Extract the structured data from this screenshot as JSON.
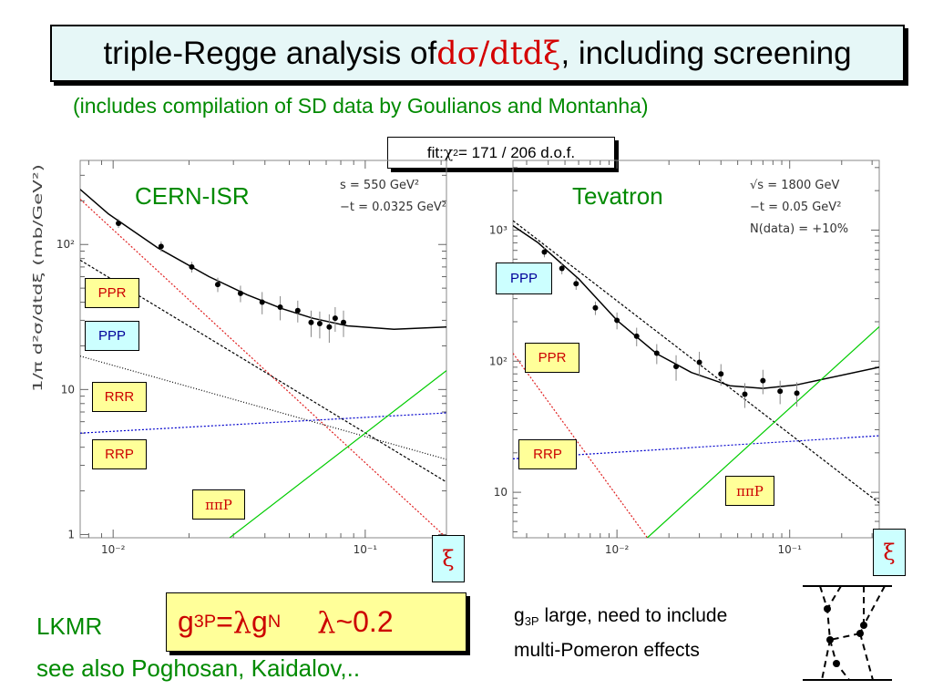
{
  "title": {
    "pre": "triple-Regge analysis of ",
    "red": "dσ/dtdξ",
    "post": ", including screening"
  },
  "subtitle": "(includes compilation of SD data by Goulianos and Montanha)",
  "fit": {
    "pre": "fit: ",
    "chi": "χ",
    "sup": "2",
    "post": " = 171 / 206 d.o.f."
  },
  "ylabel": "1/π  d²σ/dtdξ  (mb/GeV²)",
  "xi_label": "ξ",
  "colors": {
    "ppr": "#e02020",
    "ppp": "#000000",
    "rrr": "#000000",
    "rrp": "#0000cc",
    "pipip": "#00cc00",
    "total": "#000000",
    "label_text_red": "#cc0000",
    "label_text_blue": "#000099",
    "green_text": "#008a00"
  },
  "panels": {
    "isr": {
      "name": "CERN-ISR",
      "params": [
        "s = 550 GeV²",
        "−t = 0.0325 GeV²"
      ],
      "labels": [
        "PPR",
        "PPP",
        "RRR",
        "RRP",
        "ππP"
      ],
      "yticks": [
        "10²",
        "10",
        "1"
      ],
      "xticks": [
        "10⁻²",
        "10⁻¹"
      ]
    },
    "tev": {
      "name": "Tevatron",
      "params": [
        "√s = 1800 GeV",
        "−t = 0.05 GeV²",
        "N(data) = +10%"
      ],
      "labels": [
        "PPP",
        "PPR",
        "RRP",
        "ππP"
      ],
      "yticks": [
        "10³",
        "10²",
        "10"
      ],
      "xticks": [
        "10⁻²",
        "10⁻¹"
      ]
    }
  },
  "chart_data": [
    {
      "type": "line",
      "title": "CERN-ISR",
      "xlabel": "ξ",
      "ylabel": "1/π  d²σ/dtdξ  (mb/GeV²)",
      "xscale": "log",
      "yscale": "log",
      "xlim": [
        0.0074,
        0.21
      ],
      "ylim": [
        0.95,
        380
      ],
      "annotations": [
        "s = 550 GeV²",
        "−t = 0.0325 GeV²"
      ],
      "data_points": {
        "x": [
          0.0105,
          0.0155,
          0.0205,
          0.026,
          0.032,
          0.039,
          0.046,
          0.054,
          0.061,
          0.066,
          0.072,
          0.076,
          0.082
        ],
        "y": [
          140,
          97,
          70,
          53,
          46,
          40,
          37,
          35,
          29,
          28.5,
          27,
          31,
          29
        ],
        "err": [
          10,
          8,
          6,
          6,
          6,
          7,
          7,
          6,
          6,
          6,
          6,
          6,
          6
        ]
      },
      "series": [
        {
          "name": "total",
          "style": "solid",
          "x": [
            0.0074,
            0.0096,
            0.015,
            0.024,
            0.034,
            0.047,
            0.062,
            0.085,
            0.13,
            0.21
          ],
          "y": [
            240,
            162,
            95,
            60,
            45,
            36,
            31,
            27.5,
            26,
            27
          ]
        },
        {
          "name": "PPR",
          "style": "dotted",
          "x": [
            0.0074,
            0.21
          ],
          "y": [
            205,
            0.95
          ]
        },
        {
          "name": "PPP",
          "style": "dashed",
          "x": [
            0.0074,
            0.21
          ],
          "y": [
            78,
            2.3
          ]
        },
        {
          "name": "RRR",
          "style": "dotted-fine",
          "x": [
            0.0074,
            0.21
          ],
          "y": [
            17,
            3.3
          ]
        },
        {
          "name": "RRP",
          "style": "dotted",
          "x": [
            0.0074,
            0.21
          ],
          "y": [
            5.0,
            6.9
          ]
        },
        {
          "name": "ππP",
          "style": "solid",
          "x": [
            0.029,
            0.21
          ],
          "y": [
            0.95,
            13.5
          ]
        }
      ]
    },
    {
      "type": "line",
      "title": "Tevatron",
      "xlabel": "ξ",
      "ylabel": "1/π  d²σ/dtdξ  (mb/GeV²)",
      "xscale": "log",
      "yscale": "log",
      "xlim": [
        0.0025,
        0.33
      ],
      "ylim": [
        4.5,
        3400
      ],
      "annotations": [
        "√s = 1800 GeV",
        "−t = 0.05 GeV²",
        "N(data) = +10%"
      ],
      "data_points": {
        "x": [
          0.0038,
          0.0048,
          0.0058,
          0.0075,
          0.01,
          0.013,
          0.017,
          0.022,
          0.03,
          0.04,
          0.055,
          0.07,
          0.088,
          0.11
        ],
        "y": [
          680,
          510,
          390,
          255,
          205,
          155,
          115,
          91,
          98,
          80,
          56,
          71,
          59,
          57
        ],
        "err": [
          60,
          50,
          40,
          30,
          30,
          25,
          20,
          20,
          20,
          15,
          12,
          15,
          12,
          12
        ]
      },
      "series": [
        {
          "name": "total",
          "style": "solid",
          "x": [
            0.0025,
            0.0035,
            0.006,
            0.01,
            0.017,
            0.027,
            0.045,
            0.07,
            0.11,
            0.33
          ],
          "y": [
            1080,
            800,
            425,
            205,
            114,
            82,
            65,
            62,
            66,
            90
          ]
        },
        {
          "name": "PPP",
          "style": "dashed",
          "x": [
            0.0025,
            0.33
          ],
          "y": [
            1180,
            8.3
          ]
        },
        {
          "name": "PPR",
          "style": "dotted",
          "x": [
            0.0025,
            0.015
          ],
          "y": [
            115,
            4.5
          ]
        },
        {
          "name": "RRP",
          "style": "dotted",
          "x": [
            0.0025,
            0.33
          ],
          "y": [
            18,
            27
          ]
        },
        {
          "name": "ππP",
          "style": "solid",
          "x": [
            0.015,
            0.33
          ],
          "y": [
            4.5,
            183
          ]
        }
      ]
    }
  ],
  "bottom": {
    "lkmr": "LKMR",
    "see_also": "see also Poghosan, Kaidalov,..",
    "formula": {
      "g": "g",
      "g_sub": "3P",
      "eq": "=",
      "lambda": "λ",
      "gN": " g",
      "gN_sub": "N",
      "lambda2": "λ",
      "approx": "~0.2"
    },
    "note": {
      "g": "g",
      "g_sub": "3P",
      "line1": " large, need to include",
      "line2": "multi-Pomeron effects"
    }
  }
}
